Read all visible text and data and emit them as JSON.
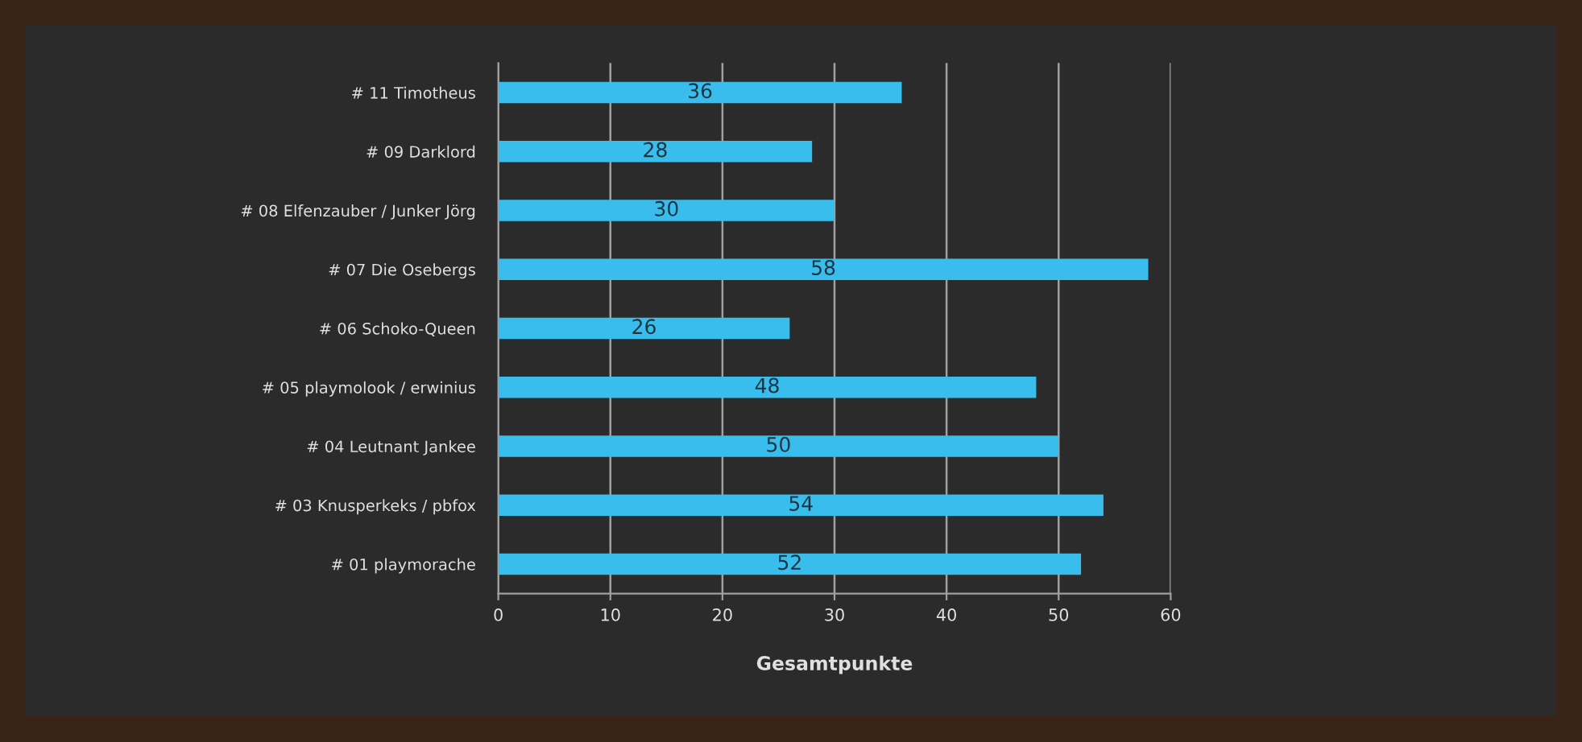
{
  "chart_data": {
    "type": "bar",
    "orientation": "horizontal",
    "xlabel": "Gesamtpunkte",
    "categories": [
      "# 11 Timotheus",
      "# 09 Darklord",
      "# 08 Elfenzauber / Junker Jörg",
      "# 07 Die Osebergs",
      "# 06 Schoko-Queen",
      "# 05 playmolook / erwinius",
      "# 04 Leutnant Jankee",
      "# 03 Knusperkeks / pbfox",
      "# 01 playmorache"
    ],
    "values": [
      36,
      28,
      30,
      58,
      26,
      48,
      50,
      54,
      52
    ],
    "color": "#38bdec",
    "xlim": [
      0,
      60
    ],
    "xticks": [
      0,
      10,
      20,
      30,
      40,
      50,
      60
    ],
    "grid": "x",
    "data_labels": true,
    "legend": false
  }
}
